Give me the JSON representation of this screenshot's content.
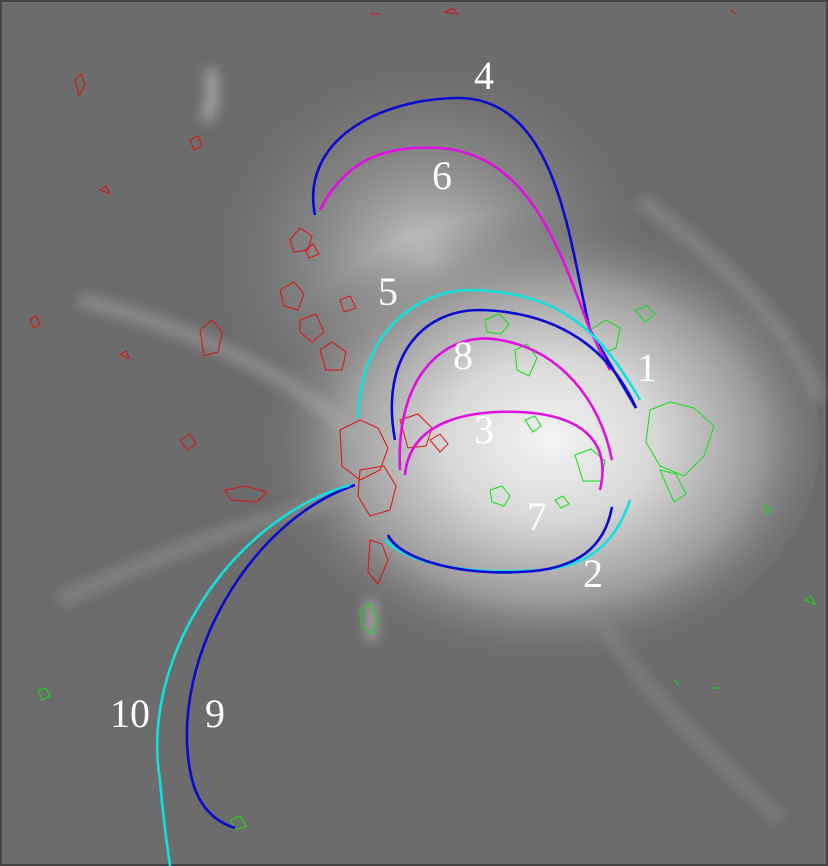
{
  "labels": [
    {
      "text": "4"
    },
    {
      "text": "6"
    },
    {
      "text": "5"
    },
    {
      "text": "8"
    },
    {
      "text": "1"
    },
    {
      "text": "3"
    },
    {
      "text": "7"
    },
    {
      "text": "2"
    },
    {
      "text": "10"
    },
    {
      "text": "9"
    }
  ]
}
